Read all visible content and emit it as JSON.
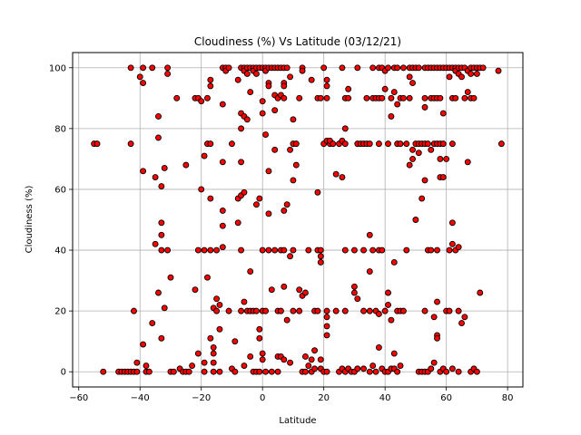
{
  "chart_data": {
    "type": "scatter",
    "title": "Cloudiness (%) Vs Latitude (03/12/21)",
    "xlabel": "Latitude",
    "ylabel": "Cloudiness (%)",
    "xlim": [
      -62,
      85
    ],
    "ylim": [
      -5,
      105
    ],
    "xticks": [
      -60,
      -40,
      -20,
      0,
      20,
      40,
      60,
      80
    ],
    "yticks": [
      0,
      20,
      40,
      60,
      80,
      100
    ],
    "grid": true,
    "marker_fill": "#ff0000",
    "marker_edge": "#000000",
    "points": [
      [
        -55,
        75
      ],
      [
        -54,
        75
      ],
      [
        -52,
        0
      ],
      [
        -47,
        0
      ],
      [
        -46,
        0
      ],
      [
        -45,
        0
      ],
      [
        -44,
        0
      ],
      [
        -43,
        0
      ],
      [
        -42,
        0
      ],
      [
        -41,
        0
      ],
      [
        -43,
        100
      ],
      [
        -43,
        75
      ],
      [
        -42,
        20
      ],
      [
        -41,
        3
      ],
      [
        -40,
        97
      ],
      [
        -39,
        95
      ],
      [
        -39,
        100
      ],
      [
        -39,
        66
      ],
      [
        -39,
        9
      ],
      [
        -38,
        2
      ],
      [
        -38,
        0
      ],
      [
        -37,
        0
      ],
      [
        -36,
        16
      ],
      [
        -36,
        100
      ],
      [
        -35,
        64
      ],
      [
        -35,
        42
      ],
      [
        -34,
        84
      ],
      [
        -34,
        77
      ],
      [
        -34,
        26
      ],
      [
        -33,
        61
      ],
      [
        -33,
        49
      ],
      [
        -33,
        45
      ],
      [
        -33,
        40
      ],
      [
        -33,
        11
      ],
      [
        -32,
        67
      ],
      [
        -32,
        21
      ],
      [
        -31,
        100
      ],
      [
        -31,
        98
      ],
      [
        -31,
        40
      ],
      [
        -30,
        31
      ],
      [
        -30,
        0
      ],
      [
        -29,
        0
      ],
      [
        -28,
        90
      ],
      [
        -27,
        1
      ],
      [
        -26,
        0
      ],
      [
        -25,
        0
      ],
      [
        -25,
        68
      ],
      [
        -24,
        0
      ],
      [
        -23,
        2
      ],
      [
        -22,
        90
      ],
      [
        -22,
        27
      ],
      [
        -21,
        90
      ],
      [
        -21,
        40
      ],
      [
        -21,
        6
      ],
      [
        -20,
        89
      ],
      [
        -20,
        60
      ],
      [
        -19,
        71
      ],
      [
        -19,
        40
      ],
      [
        -19,
        3
      ],
      [
        -19,
        0
      ],
      [
        -18,
        90
      ],
      [
        -18,
        75
      ],
      [
        -18,
        31
      ],
      [
        -17,
        96
      ],
      [
        -17,
        94
      ],
      [
        -17,
        75
      ],
      [
        -17,
        57
      ],
      [
        -17,
        40
      ],
      [
        -17,
        11
      ],
      [
        -16,
        8
      ],
      [
        -16,
        21
      ],
      [
        -16,
        6
      ],
      [
        -16,
        3
      ],
      [
        -16,
        0
      ],
      [
        -15,
        24
      ],
      [
        -15,
        20
      ],
      [
        -15,
        40
      ],
      [
        -14,
        14
      ],
      [
        -14,
        22
      ],
      [
        -14,
        0
      ],
      [
        -13,
        100
      ],
      [
        -13,
        88
      ],
      [
        -13,
        69
      ],
      [
        -13,
        53
      ],
      [
        -13,
        48
      ],
      [
        -13,
        41
      ],
      [
        -12,
        100
      ],
      [
        -12,
        99
      ],
      [
        -11,
        100
      ],
      [
        -11,
        20
      ],
      [
        -10,
        75
      ],
      [
        -10,
        1
      ],
      [
        -9,
        10
      ],
      [
        -9,
        0
      ],
      [
        -8,
        49
      ],
      [
        -8,
        57
      ],
      [
        -8,
        96
      ],
      [
        -7,
        100
      ],
      [
        -7,
        85
      ],
      [
        -7,
        80
      ],
      [
        -7,
        69
      ],
      [
        -7,
        58
      ],
      [
        -7,
        40
      ],
      [
        -7,
        20
      ],
      [
        -6,
        100
      ],
      [
        -6,
        99
      ],
      [
        -6,
        84
      ],
      [
        -6,
        59
      ],
      [
        -6,
        23
      ],
      [
        -6,
        2
      ],
      [
        -5,
        100
      ],
      [
        -5,
        98
      ],
      [
        -5,
        83
      ],
      [
        -5,
        20
      ],
      [
        -4,
        100
      ],
      [
        -4,
        92
      ],
      [
        -4,
        33
      ],
      [
        -4,
        20
      ],
      [
        -4,
        5
      ],
      [
        -3,
        100
      ],
      [
        -3,
        99
      ],
      [
        -3,
        20
      ],
      [
        -3,
        0
      ],
      [
        -2,
        100
      ],
      [
        -2,
        98
      ],
      [
        -2,
        55
      ],
      [
        -2,
        20
      ],
      [
        -2,
        0
      ],
      [
        -1,
        100
      ],
      [
        -1,
        57
      ],
      [
        -1,
        14
      ],
      [
        -1,
        11
      ],
      [
        -1,
        0
      ],
      [
        0,
        100
      ],
      [
        0,
        89
      ],
      [
        0,
        85
      ],
      [
        0,
        40
      ],
      [
        0,
        20
      ],
      [
        0,
        6
      ],
      [
        0,
        4
      ],
      [
        1,
        100
      ],
      [
        1,
        99
      ],
      [
        1,
        78
      ],
      [
        1,
        20
      ],
      [
        1,
        0
      ],
      [
        2,
        100
      ],
      [
        2,
        95
      ],
      [
        2,
        94
      ],
      [
        2,
        66
      ],
      [
        2,
        52
      ],
      [
        2,
        40
      ],
      [
        3,
        100
      ],
      [
        3,
        27
      ],
      [
        3,
        0
      ],
      [
        4,
        100
      ],
      [
        4,
        91
      ],
      [
        4,
        86
      ],
      [
        4,
        40
      ],
      [
        4,
        73
      ],
      [
        5,
        100
      ],
      [
        5,
        90
      ],
      [
        5,
        20
      ],
      [
        5,
        5
      ],
      [
        5,
        0
      ],
      [
        6,
        100
      ],
      [
        6,
        91
      ],
      [
        6,
        40
      ],
      [
        6,
        20
      ],
      [
        6,
        5
      ],
      [
        7,
        100
      ],
      [
        7,
        95
      ],
      [
        7,
        94
      ],
      [
        7,
        90
      ],
      [
        7,
        53
      ],
      [
        7,
        40
      ],
      [
        7,
        28
      ],
      [
        7,
        4
      ],
      [
        8,
        100
      ],
      [
        8,
        55
      ],
      [
        8,
        17
      ],
      [
        9,
        97
      ],
      [
        9,
        73
      ],
      [
        9,
        38
      ],
      [
        9,
        3
      ],
      [
        10,
        83
      ],
      [
        10,
        75
      ],
      [
        10,
        63
      ],
      [
        10,
        40
      ],
      [
        10,
        20
      ],
      [
        11,
        68
      ],
      [
        11,
        75
      ],
      [
        12,
        90
      ],
      [
        12,
        27
      ],
      [
        12,
        20
      ],
      [
        13,
        100
      ],
      [
        13,
        99
      ],
      [
        13,
        25
      ],
      [
        13,
        0
      ],
      [
        14,
        26
      ],
      [
        14,
        5
      ],
      [
        14,
        0
      ],
      [
        15,
        40
      ],
      [
        15,
        2
      ],
      [
        16,
        96
      ],
      [
        16,
        4
      ],
      [
        16,
        0
      ],
      [
        17,
        20
      ],
      [
        17,
        7
      ],
      [
        17,
        1
      ],
      [
        18,
        59
      ],
      [
        18,
        90
      ],
      [
        18,
        40
      ],
      [
        18,
        20
      ],
      [
        19,
        90
      ],
      [
        19,
        40
      ],
      [
        19,
        38
      ],
      [
        19,
        36
      ],
      [
        19,
        4
      ],
      [
        19,
        1
      ],
      [
        20,
        100
      ],
      [
        20,
        75
      ],
      [
        20,
        0
      ],
      [
        21,
        96
      ],
      [
        21,
        90
      ],
      [
        21,
        94
      ],
      [
        21,
        20
      ],
      [
        21,
        76
      ],
      [
        21,
        18
      ],
      [
        21,
        15
      ],
      [
        21,
        12
      ],
      [
        21,
        0
      ],
      [
        22,
        75
      ],
      [
        22,
        76
      ],
      [
        23,
        75
      ],
      [
        24,
        65
      ],
      [
        24,
        20
      ],
      [
        25,
        75
      ],
      [
        25,
        0
      ],
      [
        26,
        100
      ],
      [
        26,
        76
      ],
      [
        26,
        64
      ],
      [
        26,
        1
      ],
      [
        27,
        90
      ],
      [
        27,
        80
      ],
      [
        27,
        75
      ],
      [
        27,
        40
      ],
      [
        27,
        20
      ],
      [
        27,
        0
      ],
      [
        28,
        90
      ],
      [
        28,
        93
      ],
      [
        28,
        1
      ],
      [
        29,
        0
      ],
      [
        30,
        28
      ],
      [
        30,
        26
      ],
      [
        30,
        40
      ],
      [
        30,
        0
      ],
      [
        31,
        100
      ],
      [
        31,
        75
      ],
      [
        31,
        24
      ],
      [
        31,
        1
      ],
      [
        32,
        75
      ],
      [
        33,
        75
      ],
      [
        33,
        40
      ],
      [
        33,
        20
      ],
      [
        33,
        1
      ],
      [
        34,
        90
      ],
      [
        34,
        75
      ],
      [
        35,
        75
      ],
      [
        35,
        33
      ],
      [
        35,
        45
      ],
      [
        35,
        20
      ],
      [
        35,
        0
      ],
      [
        36,
        100
      ],
      [
        36,
        90
      ],
      [
        36,
        40
      ],
      [
        36,
        2
      ],
      [
        37,
        90
      ],
      [
        37,
        20
      ],
      [
        37,
        0
      ],
      [
        38,
        100
      ],
      [
        38,
        90
      ],
      [
        38,
        75
      ],
      [
        38,
        19
      ],
      [
        38,
        40
      ],
      [
        38,
        8
      ],
      [
        39,
        100
      ],
      [
        39,
        90
      ],
      [
        39,
        40
      ],
      [
        39,
        1
      ],
      [
        40,
        99
      ],
      [
        40,
        93
      ],
      [
        40,
        20
      ],
      [
        40,
        0
      ],
      [
        41,
        100
      ],
      [
        41,
        75
      ],
      [
        41,
        26
      ],
      [
        41,
        22
      ],
      [
        41,
        0
      ],
      [
        42,
        90
      ],
      [
        42,
        84
      ],
      [
        42,
        17
      ],
      [
        42,
        1
      ],
      [
        43,
        100
      ],
      [
        43,
        92
      ],
      [
        43,
        36
      ],
      [
        43,
        6
      ],
      [
        43,
        1
      ],
      [
        44,
        100
      ],
      [
        44,
        88
      ],
      [
        44,
        75
      ],
      [
        44,
        20
      ],
      [
        44,
        0
      ],
      [
        45,
        90
      ],
      [
        45,
        75
      ],
      [
        45,
        20
      ],
      [
        45,
        2
      ],
      [
        46,
        100
      ],
      [
        46,
        90
      ],
      [
        46,
        20
      ],
      [
        47,
        75
      ],
      [
        47,
        40
      ],
      [
        48,
        100
      ],
      [
        48,
        97
      ],
      [
        48,
        90
      ],
      [
        48,
        68
      ],
      [
        49,
        100
      ],
      [
        49,
        95
      ],
      [
        49,
        73
      ],
      [
        49,
        70
      ],
      [
        50,
        100
      ],
      [
        50,
        75
      ],
      [
        50,
        50
      ],
      [
        51,
        100
      ],
      [
        51,
        75
      ],
      [
        51,
        72
      ],
      [
        51,
        0
      ],
      [
        52,
        75
      ],
      [
        52,
        57
      ],
      [
        52,
        0
      ],
      [
        53,
        100
      ],
      [
        53,
        90
      ],
      [
        53,
        87
      ],
      [
        53,
        75
      ],
      [
        53,
        63
      ],
      [
        53,
        20
      ],
      [
        53,
        0
      ],
      [
        54,
        100
      ],
      [
        54,
        75
      ],
      [
        54,
        40
      ],
      [
        54,
        0
      ],
      [
        55,
        100
      ],
      [
        55,
        90
      ],
      [
        55,
        73
      ],
      [
        55,
        40
      ],
      [
        55,
        1
      ],
      [
        56,
        100
      ],
      [
        56,
        90
      ],
      [
        56,
        75
      ],
      [
        56,
        18
      ],
      [
        56,
        3
      ],
      [
        57,
        100
      ],
      [
        57,
        90
      ],
      [
        57,
        75
      ],
      [
        57,
        40
      ],
      [
        57,
        23
      ],
      [
        57,
        12
      ],
      [
        57,
        11
      ],
      [
        58,
        100
      ],
      [
        58,
        90
      ],
      [
        58,
        75
      ],
      [
        58,
        70
      ],
      [
        58,
        64
      ],
      [
        58,
        0
      ],
      [
        59,
        100
      ],
      [
        59,
        85
      ],
      [
        59,
        75
      ],
      [
        59,
        64
      ],
      [
        59,
        1
      ],
      [
        60,
        100
      ],
      [
        60,
        70
      ],
      [
        60,
        20
      ],
      [
        60,
        0
      ],
      [
        61,
        100
      ],
      [
        61,
        97
      ],
      [
        61,
        40
      ],
      [
        61,
        20
      ],
      [
        62,
        100
      ],
      [
        62,
        90
      ],
      [
        62,
        75
      ],
      [
        62,
        49
      ],
      [
        62,
        42
      ],
      [
        62,
        1
      ],
      [
        63,
        100
      ],
      [
        63,
        99
      ],
      [
        63,
        90
      ],
      [
        63,
        40
      ],
      [
        64,
        100
      ],
      [
        64,
        98
      ],
      [
        64,
        41
      ],
      [
        64,
        20
      ],
      [
        64,
        0
      ],
      [
        65,
        100
      ],
      [
        65,
        97
      ],
      [
        65,
        16
      ],
      [
        66,
        100
      ],
      [
        66,
        90
      ],
      [
        66,
        18
      ],
      [
        67,
        99
      ],
      [
        67,
        92
      ],
      [
        67,
        69
      ],
      [
        68,
        100
      ],
      [
        68,
        98
      ],
      [
        68,
        90
      ],
      [
        68,
        0
      ],
      [
        69,
        100
      ],
      [
        69,
        90
      ],
      [
        69,
        1
      ],
      [
        70,
        100
      ],
      [
        70,
        98
      ],
      [
        70,
        0
      ],
      [
        71,
        100
      ],
      [
        71,
        26
      ],
      [
        72,
        100
      ],
      [
        77,
        99
      ],
      [
        78,
        75
      ]
    ]
  }
}
